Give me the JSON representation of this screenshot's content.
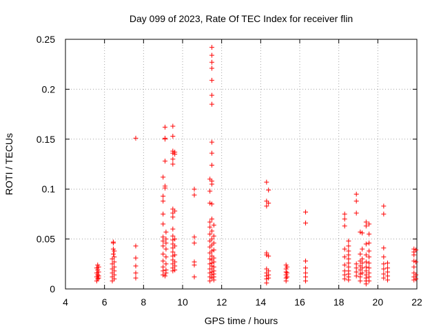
{
  "chart_data": {
    "type": "scatter",
    "title": "Day 099 of 2023, Rate Of TEC Index for receiver flin",
    "xlabel": "GPS time / hours",
    "ylabel": "ROTI / TECUs",
    "xlim": [
      4,
      22
    ],
    "ylim": [
      0,
      0.25
    ],
    "xticks": [
      4,
      6,
      8,
      10,
      12,
      14,
      16,
      18,
      20,
      22
    ],
    "yticks": [
      0,
      0.05,
      0.1,
      0.15,
      0.2,
      0.25
    ],
    "xtick_labels": [
      "4",
      "6",
      "8",
      "10",
      "12",
      "14",
      "16",
      "18",
      "20",
      "22"
    ],
    "ytick_labels": [
      "0",
      "0.05",
      "0.1",
      "0.15",
      "0.2",
      "0.25"
    ],
    "grid": true,
    "marker": "+",
    "color": "#ff0000",
    "series": [
      {
        "points": [
          [
            5.6,
            0.008
          ],
          [
            5.6,
            0.012
          ],
          [
            5.6,
            0.016
          ],
          [
            5.6,
            0.021
          ],
          [
            5.65,
            0.01
          ],
          [
            5.65,
            0.014
          ],
          [
            5.65,
            0.019
          ],
          [
            5.65,
            0.024
          ],
          [
            5.7,
            0.011
          ],
          [
            5.7,
            0.017
          ],
          [
            5.7,
            0.022
          ],
          [
            5.7,
            0.013
          ],
          [
            6.4,
            0.008
          ],
          [
            6.4,
            0.012
          ],
          [
            6.4,
            0.016
          ],
          [
            6.4,
            0.02
          ],
          [
            6.4,
            0.025
          ],
          [
            6.4,
            0.03
          ],
          [
            6.45,
            0.035
          ],
          [
            6.45,
            0.04
          ],
          [
            6.45,
            0.047
          ],
          [
            6.45,
            0.046
          ],
          [
            6.5,
            0.01
          ],
          [
            6.5,
            0.014
          ],
          [
            6.5,
            0.018
          ],
          [
            6.5,
            0.022
          ],
          [
            6.5,
            0.027
          ],
          [
            6.5,
            0.032
          ],
          [
            6.5,
            0.038
          ],
          [
            7.6,
            0.151
          ],
          [
            7.6,
            0.043
          ],
          [
            7.6,
            0.031
          ],
          [
            7.6,
            0.023
          ],
          [
            7.6,
            0.016
          ],
          [
            7.6,
            0.011
          ],
          [
            9.0,
            0.112
          ],
          [
            9.0,
            0.093
          ],
          [
            9.0,
            0.088
          ],
          [
            9.0,
            0.075
          ],
          [
            9.0,
            0.065
          ],
          [
            9.0,
            0.052
          ],
          [
            9.0,
            0.048
          ],
          [
            9.0,
            0.043
          ],
          [
            9.0,
            0.035
          ],
          [
            9.0,
            0.028
          ],
          [
            9.0,
            0.022
          ],
          [
            9.0,
            0.018
          ],
          [
            9.0,
            0.014
          ],
          [
            9.1,
            0.162
          ],
          [
            9.1,
            0.151
          ],
          [
            9.1,
            0.15
          ],
          [
            9.1,
            0.128
          ],
          [
            9.1,
            0.103
          ],
          [
            9.1,
            0.101
          ],
          [
            9.15,
            0.057
          ],
          [
            9.15,
            0.05
          ],
          [
            9.15,
            0.046
          ],
          [
            9.15,
            0.04
          ],
          [
            9.15,
            0.032
          ],
          [
            9.15,
            0.025
          ],
          [
            9.15,
            0.019
          ],
          [
            9.15,
            0.016
          ],
          [
            9.1,
            0.013
          ],
          [
            9.5,
            0.163
          ],
          [
            9.5,
            0.153
          ],
          [
            9.5,
            0.138
          ],
          [
            9.5,
            0.136
          ],
          [
            9.5,
            0.13
          ],
          [
            9.5,
            0.125
          ],
          [
            9.5,
            0.08
          ],
          [
            9.5,
            0.076
          ],
          [
            9.5,
            0.072
          ],
          [
            9.5,
            0.06
          ],
          [
            9.5,
            0.053
          ],
          [
            9.5,
            0.049
          ],
          [
            9.5,
            0.045
          ],
          [
            9.5,
            0.041
          ],
          [
            9.5,
            0.037
          ],
          [
            9.5,
            0.033
          ],
          [
            9.5,
            0.029
          ],
          [
            9.5,
            0.025
          ],
          [
            9.5,
            0.021
          ],
          [
            9.5,
            0.018
          ],
          [
            9.6,
            0.137
          ],
          [
            9.6,
            0.135
          ],
          [
            9.6,
            0.078
          ],
          [
            9.6,
            0.05
          ],
          [
            9.6,
            0.043
          ],
          [
            9.6,
            0.034
          ],
          [
            9.6,
            0.027
          ],
          [
            9.6,
            0.023
          ],
          [
            9.6,
            0.019
          ],
          [
            10.6,
            0.1
          ],
          [
            10.6,
            0.094
          ],
          [
            10.6,
            0.052
          ],
          [
            10.6,
            0.046
          ],
          [
            10.6,
            0.027
          ],
          [
            10.6,
            0.024
          ],
          [
            10.6,
            0.012
          ],
          [
            11.4,
            0.11
          ],
          [
            11.4,
            0.098
          ],
          [
            11.4,
            0.086
          ],
          [
            11.4,
            0.067
          ],
          [
            11.4,
            0.062
          ],
          [
            11.4,
            0.055
          ],
          [
            11.4,
            0.048
          ],
          [
            11.4,
            0.042
          ],
          [
            11.4,
            0.036
          ],
          [
            11.4,
            0.03
          ],
          [
            11.4,
            0.025
          ],
          [
            11.4,
            0.02
          ],
          [
            11.4,
            0.016
          ],
          [
            11.4,
            0.012
          ],
          [
            11.4,
            0.008
          ],
          [
            11.5,
            0.242
          ],
          [
            11.5,
            0.234
          ],
          [
            11.5,
            0.227
          ],
          [
            11.5,
            0.221
          ],
          [
            11.5,
            0.209
          ],
          [
            11.5,
            0.194
          ],
          [
            11.5,
            0.185
          ],
          [
            11.5,
            0.147
          ],
          [
            11.5,
            0.136
          ],
          [
            11.5,
            0.124
          ],
          [
            11.5,
            0.108
          ],
          [
            11.5,
            0.105
          ],
          [
            11.5,
            0.085
          ],
          [
            11.5,
            0.07
          ],
          [
            11.5,
            0.058
          ],
          [
            11.5,
            0.05
          ],
          [
            11.5,
            0.044
          ],
          [
            11.5,
            0.038
          ],
          [
            11.5,
            0.033
          ],
          [
            11.5,
            0.029
          ],
          [
            11.5,
            0.026
          ],
          [
            11.5,
            0.023
          ],
          [
            11.5,
            0.02
          ],
          [
            11.5,
            0.017
          ],
          [
            11.5,
            0.014
          ],
          [
            11.5,
            0.011
          ],
          [
            11.6,
            0.064
          ],
          [
            11.6,
            0.053
          ],
          [
            11.6,
            0.046
          ],
          [
            11.6,
            0.039
          ],
          [
            11.6,
            0.031
          ],
          [
            11.6,
            0.027
          ],
          [
            11.6,
            0.022
          ],
          [
            11.6,
            0.018
          ],
          [
            11.6,
            0.015
          ],
          [
            11.6,
            0.012
          ],
          [
            11.6,
            0.009
          ],
          [
            14.3,
            0.107
          ],
          [
            14.3,
            0.088
          ],
          [
            14.3,
            0.083
          ],
          [
            14.3,
            0.036
          ],
          [
            14.3,
            0.034
          ],
          [
            14.3,
            0.02
          ],
          [
            14.3,
            0.016
          ],
          [
            14.3,
            0.013
          ],
          [
            14.3,
            0.01
          ],
          [
            14.3,
            0.006
          ],
          [
            14.4,
            0.099
          ],
          [
            14.4,
            0.086
          ],
          [
            14.4,
            0.033
          ],
          [
            14.4,
            0.018
          ],
          [
            14.4,
            0.014
          ],
          [
            14.4,
            0.011
          ],
          [
            15.3,
            0.024
          ],
          [
            15.3,
            0.02
          ],
          [
            15.3,
            0.017
          ],
          [
            15.3,
            0.014
          ],
          [
            15.3,
            0.011
          ],
          [
            15.3,
            0.008
          ],
          [
            15.35,
            0.022
          ],
          [
            15.35,
            0.016
          ],
          [
            15.35,
            0.012
          ],
          [
            16.3,
            0.077
          ],
          [
            16.3,
            0.066
          ],
          [
            16.3,
            0.028
          ],
          [
            16.3,
            0.021
          ],
          [
            16.3,
            0.016
          ],
          [
            16.3,
            0.012
          ],
          [
            16.3,
            0.008
          ],
          [
            18.3,
            0.075
          ],
          [
            18.3,
            0.07
          ],
          [
            18.3,
            0.063
          ],
          [
            18.3,
            0.04
          ],
          [
            18.3,
            0.032
          ],
          [
            18.3,
            0.024
          ],
          [
            18.3,
            0.018
          ],
          [
            18.3,
            0.014
          ],
          [
            18.3,
            0.01
          ],
          [
            18.5,
            0.048
          ],
          [
            18.5,
            0.043
          ],
          [
            18.5,
            0.038
          ],
          [
            18.5,
            0.034
          ],
          [
            18.5,
            0.03
          ],
          [
            18.5,
            0.026
          ],
          [
            18.5,
            0.022
          ],
          [
            18.5,
            0.018
          ],
          [
            18.5,
            0.015
          ],
          [
            18.5,
            0.012
          ],
          [
            18.5,
            0.009
          ],
          [
            18.9,
            0.095
          ],
          [
            18.9,
            0.088
          ],
          [
            18.9,
            0.076
          ],
          [
            18.9,
            0.025
          ],
          [
            18.9,
            0.021
          ],
          [
            18.9,
            0.017
          ],
          [
            18.9,
            0.013
          ],
          [
            19.1,
            0.057
          ],
          [
            19.1,
            0.035
          ],
          [
            19.1,
            0.028
          ],
          [
            19.1,
            0.023
          ],
          [
            19.1,
            0.019
          ],
          [
            19.1,
            0.015
          ],
          [
            19.1,
            0.012
          ],
          [
            19.1,
            0.008
          ],
          [
            19.2,
            0.056
          ],
          [
            19.2,
            0.04
          ],
          [
            19.2,
            0.03
          ],
          [
            19.2,
            0.026
          ],
          [
            19.2,
            0.021
          ],
          [
            19.2,
            0.016
          ],
          [
            19.4,
            0.067
          ],
          [
            19.4,
            0.063
          ],
          [
            19.4,
            0.045
          ],
          [
            19.4,
            0.034
          ],
          [
            19.4,
            0.027
          ],
          [
            19.4,
            0.022
          ],
          [
            19.4,
            0.018
          ],
          [
            19.4,
            0.014
          ],
          [
            19.4,
            0.011
          ],
          [
            19.4,
            0.008
          ],
          [
            19.4,
            0.005
          ],
          [
            19.55,
            0.065
          ],
          [
            19.55,
            0.055
          ],
          [
            19.55,
            0.046
          ],
          [
            19.55,
            0.038
          ],
          [
            19.55,
            0.032
          ],
          [
            19.55,
            0.026
          ],
          [
            19.55,
            0.021
          ],
          [
            19.55,
            0.016
          ],
          [
            19.55,
            0.012
          ],
          [
            19.55,
            0.008
          ],
          [
            20.3,
            0.083
          ],
          [
            20.3,
            0.075
          ],
          [
            20.3,
            0.041
          ],
          [
            20.3,
            0.032
          ],
          [
            20.3,
            0.025
          ],
          [
            20.3,
            0.02
          ],
          [
            20.3,
            0.015
          ],
          [
            20.3,
            0.011
          ],
          [
            20.5,
            0.026
          ],
          [
            20.5,
            0.021
          ],
          [
            20.5,
            0.017
          ],
          [
            20.5,
            0.013
          ],
          [
            20.5,
            0.009
          ],
          [
            21.85,
            0.04
          ],
          [
            21.85,
            0.037
          ],
          [
            21.85,
            0.034
          ],
          [
            21.85,
            0.028
          ],
          [
            21.85,
            0.022
          ],
          [
            21.85,
            0.016
          ],
          [
            21.85,
            0.012
          ],
          [
            21.85,
            0.009
          ],
          [
            21.95,
            0.039
          ],
          [
            21.95,
            0.027
          ],
          [
            21.95,
            0.014
          ],
          [
            21.95,
            0.01
          ]
        ]
      }
    ]
  }
}
